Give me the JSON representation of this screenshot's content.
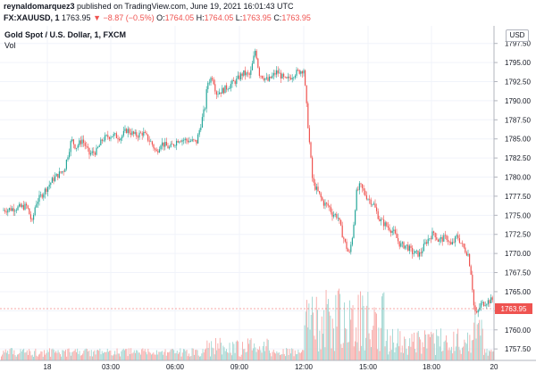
{
  "header": {
    "author": "reynaldomarquez3",
    "published_text": "published on TradingView.com, June 19, 2021 16:01:43 UTC",
    "symbol": "FX:XAUUSD, 1",
    "last": "1763.95",
    "change": "−8.87 (−0.5%)",
    "o_label": "O:",
    "o": "1764.05",
    "h_label": "H:",
    "h": "1764.05",
    "l_label": "L:",
    "l": "1763.95",
    "c_label": "C:",
    "c": "1763.95"
  },
  "legend": {
    "title": "Gold Spot / U.S. Dollar, 1, FXCM",
    "volume": "Vol"
  },
  "currency_button": "USD",
  "colors": {
    "up": "#26a69a",
    "down": "#ef5350",
    "vol_up": "#9fd6d1",
    "vol_down": "#f7a8a6",
    "grid": "#f0f3fa"
  },
  "chart_data": {
    "type": "line",
    "title": "Gold Spot / U.S. Dollar, 1, FXCM",
    "ylim": [
      1756,
      1799.8
    ],
    "x_ticks": [
      "18",
      "03:00",
      "06:00",
      "09:00",
      "12:00",
      "15:00",
      "18:00",
      "20"
    ],
    "y_ticks": [
      "1797.50",
      "1795.00",
      "1792.50",
      "1790.00",
      "1787.50",
      "1785.00",
      "1782.50",
      "1780.00",
      "1777.50",
      "1775.00",
      "1772.50",
      "1770.00",
      "1767.50",
      "1765.00",
      "1762.50",
      "1760.00",
      "1757.50"
    ],
    "last_price_label": "1763.95",
    "last_price": 1763.95,
    "price_path": [
      [
        0,
        1775.6
      ],
      [
        30,
        1776.2
      ],
      [
        36,
        1774.0
      ],
      [
        40,
        1776.6
      ],
      [
        50,
        1778.2
      ],
      [
        60,
        1779.8
      ],
      [
        72,
        1781.0
      ],
      [
        80,
        1784.9
      ],
      [
        85,
        1783.9
      ],
      [
        92,
        1784.9
      ],
      [
        100,
        1783.0
      ],
      [
        108,
        1783.4
      ],
      [
        115,
        1785.0
      ],
      [
        125,
        1785.5
      ],
      [
        135,
        1785.2
      ],
      [
        142,
        1786.2
      ],
      [
        152,
        1785.4
      ],
      [
        160,
        1785.8
      ],
      [
        170,
        1784.4
      ],
      [
        175,
        1783.2
      ],
      [
        180,
        1784.5
      ],
      [
        190,
        1783.8
      ],
      [
        200,
        1785.0
      ],
      [
        210,
        1784.8
      ],
      [
        220,
        1784.6
      ],
      [
        226,
        1787.5
      ],
      [
        230,
        1789.4
      ],
      [
        232,
        1792.3
      ],
      [
        238,
        1793.2
      ],
      [
        242,
        1791.0
      ],
      [
        250,
        1791.4
      ],
      [
        258,
        1792.1
      ],
      [
        265,
        1792.7
      ],
      [
        272,
        1793.6
      ],
      [
        280,
        1793.3
      ],
      [
        286,
        1796.8
      ],
      [
        290,
        1793.6
      ],
      [
        300,
        1792.6
      ],
      [
        310,
        1793.8
      ],
      [
        320,
        1792.6
      ],
      [
        330,
        1793.6
      ],
      [
        340,
        1794.1
      ],
      [
        345,
        1786.5
      ],
      [
        350,
        1779.3
      ],
      [
        357,
        1777.8
      ],
      [
        362,
        1776.6
      ],
      [
        368,
        1776.2
      ],
      [
        372,
        1775.2
      ],
      [
        378,
        1774.9
      ],
      [
        383,
        1772.6
      ],
      [
        387,
        1771.1
      ],
      [
        391,
        1769.8
      ],
      [
        395,
        1772.7
      ],
      [
        399,
        1777.9
      ],
      [
        403,
        1778.9
      ],
      [
        410,
        1777.5
      ],
      [
        418,
        1776.5
      ],
      [
        425,
        1774.4
      ],
      [
        432,
        1773.7
      ],
      [
        440,
        1772.9
      ],
      [
        448,
        1771.1
      ],
      [
        455,
        1771.0
      ],
      [
        462,
        1770.1
      ],
      [
        470,
        1769.9
      ],
      [
        478,
        1771.7
      ],
      [
        486,
        1772.8
      ],
      [
        490,
        1771.7
      ],
      [
        500,
        1772.1
      ],
      [
        505,
        1771.0
      ],
      [
        512,
        1772.3
      ],
      [
        518,
        1770.9
      ],
      [
        524,
        1769.9
      ],
      [
        528,
        1766.9
      ],
      [
        530,
        1763.4
      ],
      [
        533,
        1761.8
      ],
      [
        538,
        1763.3
      ],
      [
        545,
        1763.7
      ],
      [
        552,
        1763.95
      ]
    ]
  }
}
